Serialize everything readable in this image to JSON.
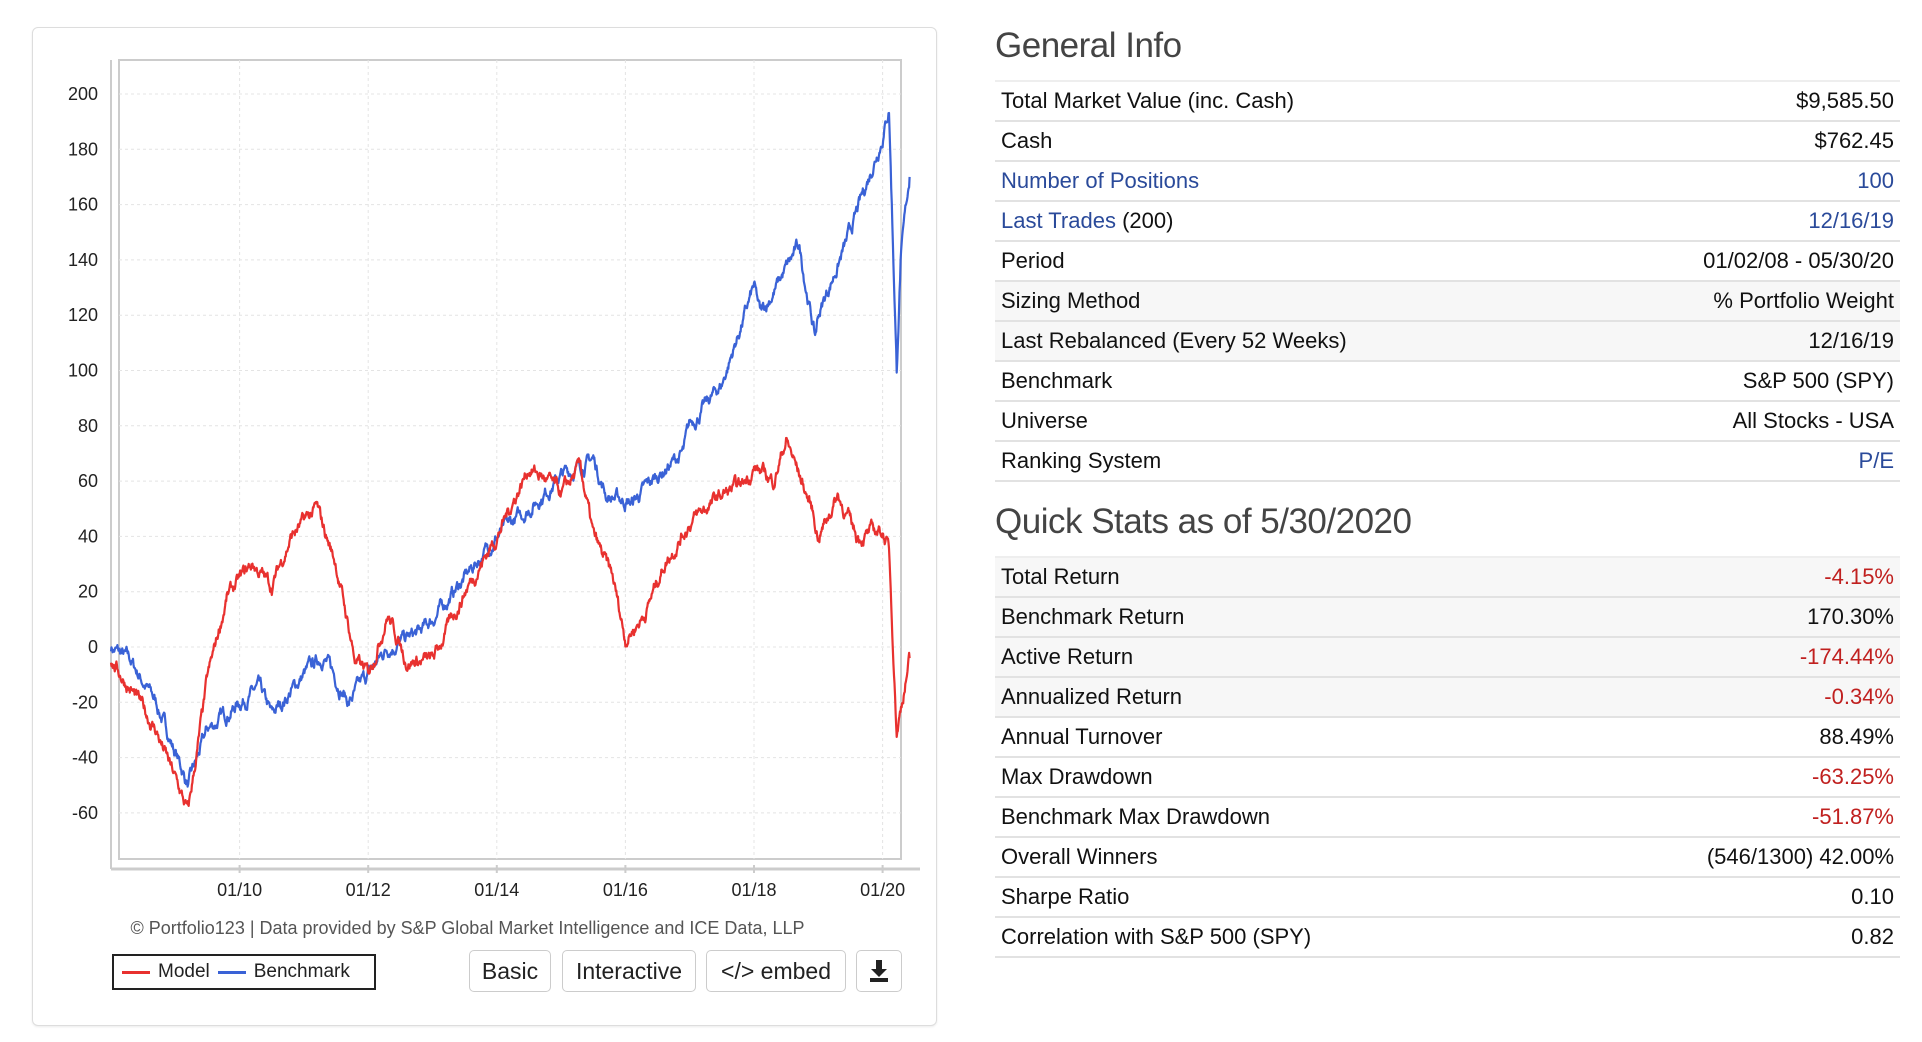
{
  "chart_data": {
    "type": "line",
    "title": "",
    "xlabel": "",
    "ylabel": "",
    "x_ticks": [
      "01/10",
      "01/12",
      "01/14",
      "01/16",
      "01/18",
      "01/20"
    ],
    "x_tick_years": [
      2010,
      2012,
      2014,
      2016,
      2018,
      2020
    ],
    "xlim": [
      2008.0,
      2020.42
    ],
    "y_ticks": [
      200,
      180,
      160,
      140,
      120,
      100,
      80,
      60,
      40,
      20,
      0,
      -20,
      -40,
      -60
    ],
    "ylim": [
      -70,
      210
    ],
    "grid": true,
    "legend": "bottom-left",
    "series": [
      {
        "name": "Model",
        "color": "#e8312f",
        "points": [
          [
            2008.0,
            -5
          ],
          [
            2008.3,
            -15
          ],
          [
            2008.7,
            -30
          ],
          [
            2009.0,
            -48
          ],
          [
            2009.2,
            -60
          ],
          [
            2009.5,
            -12
          ],
          [
            2009.8,
            18
          ],
          [
            2010.2,
            30
          ],
          [
            2010.5,
            22
          ],
          [
            2010.8,
            40
          ],
          [
            2011.2,
            50
          ],
          [
            2011.5,
            30
          ],
          [
            2011.8,
            -5
          ],
          [
            2012.0,
            -10
          ],
          [
            2012.3,
            12
          ],
          [
            2012.6,
            -5
          ],
          [
            2013.0,
            -5
          ],
          [
            2013.5,
            20
          ],
          [
            2014.0,
            40
          ],
          [
            2014.5,
            65
          ],
          [
            2014.8,
            60
          ],
          [
            2015.0,
            55
          ],
          [
            2015.3,
            65
          ],
          [
            2015.5,
            40
          ],
          [
            2015.8,
            25
          ],
          [
            2016.0,
            3
          ],
          [
            2016.3,
            12
          ],
          [
            2016.6,
            30
          ],
          [
            2017.0,
            45
          ],
          [
            2017.5,
            55
          ],
          [
            2017.8,
            58
          ],
          [
            2018.0,
            65
          ],
          [
            2018.3,
            60
          ],
          [
            2018.5,
            75
          ],
          [
            2018.9,
            50
          ],
          [
            2019.0,
            40
          ],
          [
            2019.3,
            55
          ],
          [
            2019.6,
            40
          ],
          [
            2020.0,
            42
          ],
          [
            2020.1,
            35
          ],
          [
            2020.22,
            -30
          ],
          [
            2020.42,
            -4
          ]
        ]
      },
      {
        "name": "Benchmark",
        "color": "#3a62d6",
        "points": [
          [
            2008.0,
            0
          ],
          [
            2008.3,
            -5
          ],
          [
            2008.7,
            -20
          ],
          [
            2009.0,
            -38
          ],
          [
            2009.2,
            -50
          ],
          [
            2009.5,
            -30
          ],
          [
            2010.0,
            -20
          ],
          [
            2010.3,
            -15
          ],
          [
            2010.5,
            -25
          ],
          [
            2011.0,
            -10
          ],
          [
            2011.3,
            -3
          ],
          [
            2011.7,
            -20
          ],
          [
            2012.0,
            -10
          ],
          [
            2012.3,
            0
          ],
          [
            2012.8,
            5
          ],
          [
            2013.0,
            10
          ],
          [
            2013.5,
            25
          ],
          [
            2014.0,
            40
          ],
          [
            2014.5,
            50
          ],
          [
            2015.0,
            62
          ],
          [
            2015.5,
            68
          ],
          [
            2015.7,
            55
          ],
          [
            2016.1,
            52
          ],
          [
            2016.5,
            62
          ],
          [
            2016.9,
            70
          ],
          [
            2017.0,
            80
          ],
          [
            2017.5,
            95
          ],
          [
            2018.0,
            130
          ],
          [
            2018.1,
            120
          ],
          [
            2018.7,
            145
          ],
          [
            2018.95,
            112
          ],
          [
            2019.0,
            120
          ],
          [
            2019.5,
            150
          ],
          [
            2020.0,
            185
          ],
          [
            2020.1,
            195
          ],
          [
            2020.22,
            100
          ],
          [
            2020.28,
            140
          ],
          [
            2020.42,
            170
          ]
        ]
      }
    ]
  },
  "chart": {
    "credit": "© Portfolio123 | Data provided by S&P Global Market Intelligence and ICE Data, LLP",
    "legend": [
      "Model",
      "Benchmark"
    ],
    "buttons": {
      "basic": "Basic",
      "interactive": "Interactive",
      "embed": "</> embed"
    },
    "download_icon": "download-icon"
  },
  "general": {
    "title": "General Info",
    "rows": [
      {
        "label": "Total Market Value (inc. Cash)",
        "value": "$9,585.50"
      },
      {
        "label": "Cash",
        "value": "$762.45"
      },
      {
        "label": "Number of Positions",
        "value": "100"
      },
      {
        "label": "Last Trades",
        "label_suffix": "(200)",
        "value": "12/16/19"
      },
      {
        "label": "Period",
        "value": "01/02/08 - 05/30/20"
      },
      {
        "label": "Sizing Method",
        "value": "% Portfolio Weight"
      },
      {
        "label": "Last Rebalanced (Every 52 Weeks)",
        "value": "12/16/19"
      },
      {
        "label": "Benchmark",
        "value": "S&P 500 (SPY)"
      },
      {
        "label": "Universe",
        "value": "All Stocks - USA"
      },
      {
        "label": "Ranking System",
        "value": "P/E"
      }
    ]
  },
  "quick": {
    "title": "Quick Stats as of 5/30/2020",
    "rows": [
      {
        "label": "Total Return",
        "value": "-4.15%"
      },
      {
        "label": "Benchmark Return",
        "value": "170.30%"
      },
      {
        "label": "Active Return",
        "value": "-174.44%"
      },
      {
        "label": "Annualized Return",
        "value": "-0.34%"
      },
      {
        "label": "Annual Turnover",
        "value": "88.49%"
      },
      {
        "label": "Max Drawdown",
        "value": "-63.25%"
      },
      {
        "label": "Benchmark Max Drawdown",
        "value": "-51.87%"
      },
      {
        "label": "Overall Winners",
        "value": "(546/1300) 42.00%"
      },
      {
        "label": "Sharpe Ratio",
        "value": "0.10"
      },
      {
        "label": "Correlation with S&P 500 (SPY)",
        "value": "0.82"
      }
    ]
  }
}
